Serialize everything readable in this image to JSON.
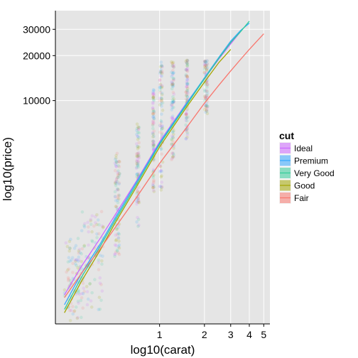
{
  "chart_data": {
    "type": "scatter",
    "title": "",
    "xlabel": "log10(carat)",
    "ylabel": "log10(price)",
    "x_scale": "log10",
    "y_scale": "log10",
    "xlim": [
      0.2,
      5.5
    ],
    "ylim": [
      320,
      40000
    ],
    "x_ticks": [
      1,
      2,
      3,
      4,
      5
    ],
    "x_tick_labels": [
      "1",
      "2",
      "3",
      "4",
      "5"
    ],
    "y_ticks": [
      10000,
      20000,
      30000
    ],
    "y_tick_labels": [
      "10000",
      "20000",
      "30000"
    ],
    "grid": true,
    "legend": {
      "title": "cut",
      "position": "right",
      "entries": [
        "Ideal",
        "Premium",
        "Very Good",
        "Good",
        "Fair"
      ]
    },
    "colors": {
      "Ideal": "#CC66FF",
      "Premium": "#33A6FF",
      "Very Good": "#33CC99",
      "Good": "#A3A500",
      "Fair": "#F8766D",
      "panel": "#E5E5E5",
      "grid": "#FFFFFF"
    },
    "series": [
      {
        "name": "Ideal",
        "curve": {
          "x": [
            0.23,
            0.3,
            0.4,
            0.5,
            0.7,
            1.0,
            1.5,
            2.0,
            2.5,
            3.0,
            3.5
          ],
          "y": [
            500,
            780,
            1200,
            1700,
            2900,
            5300,
            9500,
            14000,
            19000,
            24000,
            29000
          ]
        }
      },
      {
        "name": "Premium",
        "curve": {
          "x": [
            0.23,
            0.3,
            0.4,
            0.5,
            0.7,
            1.0,
            1.5,
            2.0,
            2.5,
            3.0,
            3.5,
            4.0
          ],
          "y": [
            430,
            700,
            1100,
            1620,
            2850,
            5200,
            9400,
            14200,
            19500,
            25000,
            29500,
            33000
          ]
        }
      },
      {
        "name": "Very Good",
        "curve": {
          "x": [
            0.23,
            0.3,
            0.4,
            0.5,
            0.7,
            1.0,
            1.5,
            2.0,
            2.5,
            3.0,
            3.5,
            4.0
          ],
          "y": [
            400,
            660,
            1060,
            1560,
            2750,
            5100,
            9200,
            14000,
            19200,
            24500,
            29000,
            34000
          ]
        }
      },
      {
        "name": "Good",
        "curve": {
          "x": [
            0.23,
            0.3,
            0.4,
            0.5,
            0.7,
            1.0,
            1.5,
            2.0,
            2.5,
            3.0
          ],
          "y": [
            380,
            620,
            1000,
            1500,
            2650,
            4900,
            8900,
            13300,
            18000,
            22000
          ]
        }
      },
      {
        "name": "Fair",
        "curve": {
          "x": [
            0.23,
            0.3,
            0.4,
            0.5,
            0.7,
            1.0,
            1.5,
            2.0,
            2.5,
            3.0,
            3.5,
            4.0,
            4.5,
            5.0
          ],
          "y": [
            480,
            700,
            1020,
            1400,
            2250,
            3800,
            6500,
            9600,
            12700,
            15800,
            18900,
            22000,
            25000,
            28000
          ]
        }
      }
    ],
    "point_clusters": [
      {
        "x": [
          0.23,
          0.3
        ],
        "y": [
          330,
          1200
        ]
      },
      {
        "x": [
          0.3,
          0.42
        ],
        "y": [
          380,
          1900
        ]
      },
      {
        "x": [
          0.5,
          0.54
        ],
        "y": [
          900,
          4500
        ]
      },
      {
        "x": [
          0.7,
          0.73
        ],
        "y": [
          1400,
          7000
        ]
      },
      {
        "x": [
          0.9,
          0.92
        ],
        "y": [
          2400,
          12000
        ]
      },
      {
        "x": [
          1.0,
          1.05
        ],
        "y": [
          2500,
          18500
        ]
      },
      {
        "x": [
          1.2,
          1.25
        ],
        "y": [
          4000,
          18500
        ]
      },
      {
        "x": [
          1.5,
          1.55
        ],
        "y": [
          5500,
          18800
        ]
      },
      {
        "x": [
          2.0,
          2.1
        ],
        "y": [
          8000,
          18800
        ]
      }
    ]
  }
}
